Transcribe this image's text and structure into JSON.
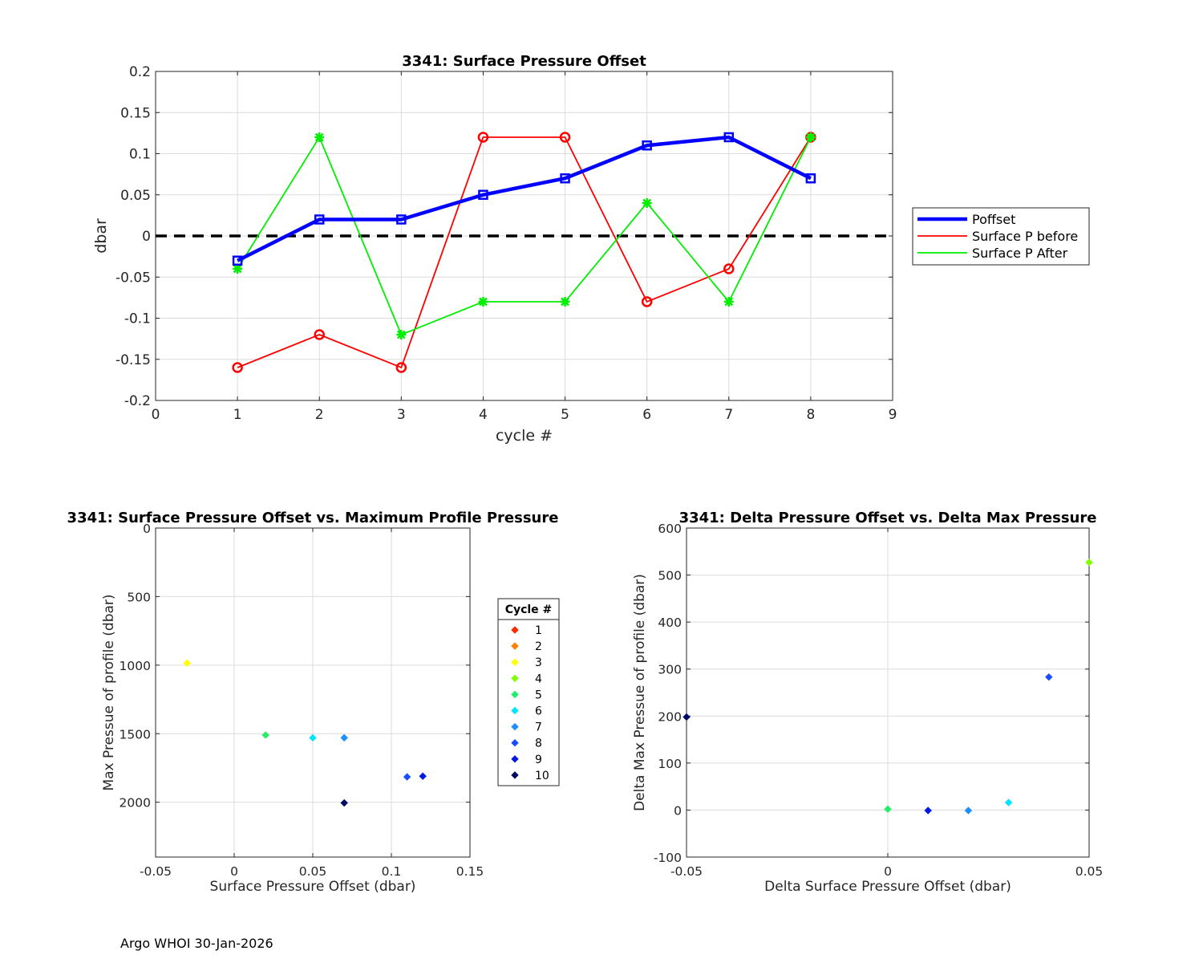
{
  "footer": "Argo WHOI 30-Jan-2026",
  "chart_data": [
    {
      "type": "line",
      "title": "3341: Surface Pressure Offset",
      "xlabel": "cycle #",
      "ylabel": "dbar",
      "xlim": [
        0,
        9
      ],
      "ylim": [
        -0.2,
        0.2
      ],
      "xticks": [
        "0",
        "1",
        "2",
        "3",
        "4",
        "5",
        "6",
        "7",
        "8",
        "9"
      ],
      "yticks": [
        "-0.2",
        "-0.15",
        "-0.1",
        "-0.05",
        "0",
        "0.05",
        "0.1",
        "0.15",
        "0.2"
      ],
      "grid": true,
      "legend_position": "outside-right",
      "reference_line": {
        "y": 0,
        "style": "dashed",
        "color": "#000000"
      },
      "series": [
        {
          "name": "Poffset",
          "color": "#0000ff",
          "marker": "square",
          "width": "thick",
          "x": [
            1,
            2,
            3,
            4,
            5,
            6,
            7,
            8
          ],
          "y": [
            -0.03,
            0.02,
            0.02,
            0.05,
            0.07,
            0.11,
            0.12,
            0.07
          ]
        },
        {
          "name": "Surface P before",
          "color": "#ff0000",
          "marker": "circle",
          "width": "thin",
          "x": [
            1,
            2,
            3,
            4,
            5,
            6,
            7,
            8
          ],
          "y": [
            -0.16,
            -0.12,
            -0.16,
            0.12,
            0.12,
            -0.08,
            -0.04,
            0.12
          ]
        },
        {
          "name": "Surface P After",
          "color": "#00ee00",
          "marker": "star",
          "width": "thin",
          "x": [
            1,
            2,
            3,
            4,
            5,
            6,
            7,
            8
          ],
          "y": [
            -0.04,
            0.12,
            -0.12,
            -0.08,
            -0.08,
            0.04,
            -0.08,
            0.12
          ]
        }
      ]
    },
    {
      "type": "scatter",
      "title": "3341: Surface Pressure Offset vs. Maximum Profile Pressure",
      "xlabel": "Surface Pressure Offset (dbar)",
      "ylabel": "Max Pressue of profile (dbar)",
      "xlim": [
        -0.05,
        0.15
      ],
      "ylim": [
        0,
        2400
      ],
      "y_reversed": true,
      "xticks": [
        "-0.05",
        "0",
        "0.05",
        "0.1",
        "0.15"
      ],
      "yticks": [
        "0",
        "500",
        "1000",
        "1500",
        "2000"
      ],
      "grid": true,
      "legend_title": "Cycle #",
      "legend_position": "outside-right",
      "legend": [
        {
          "label": "1",
          "color": "#ff2a00"
        },
        {
          "label": "2",
          "color": "#ff7f00"
        },
        {
          "label": "3",
          "color": "#ffff00"
        },
        {
          "label": "4",
          "color": "#7fff00"
        },
        {
          "label": "5",
          "color": "#22ee66"
        },
        {
          "label": "6",
          "color": "#00e5ff"
        },
        {
          "label": "7",
          "color": "#1e8fff"
        },
        {
          "label": "8",
          "color": "#1a4cff"
        },
        {
          "label": "9",
          "color": "#0019e6"
        },
        {
          "label": "10",
          "color": "#000a66"
        }
      ],
      "points": [
        {
          "x": -0.03,
          "y": 985,
          "color": "#ffff00"
        },
        {
          "x": 0.02,
          "y": 1510,
          "color": "#22ee66"
        },
        {
          "x": 0.05,
          "y": 1530,
          "color": "#00e5ff"
        },
        {
          "x": 0.07,
          "y": 1530,
          "color": "#1e8fff"
        },
        {
          "x": 0.11,
          "y": 1815,
          "color": "#1a4cff"
        },
        {
          "x": 0.12,
          "y": 1810,
          "color": "#0019e6"
        },
        {
          "x": 0.07,
          "y": 2005,
          "color": "#000a66"
        }
      ]
    },
    {
      "type": "scatter",
      "title": "3341: Delta Pressure Offset vs. Delta Max Pressure",
      "xlabel": "Delta Surface Pressure Offset (dbar)",
      "ylabel": "Delta Max Pressue of profile (dbar)",
      "xlim": [
        -0.05,
        0.05
      ],
      "ylim": [
        -100,
        600
      ],
      "xticks": [
        "-0.05",
        "0",
        "0.05"
      ],
      "yticks": [
        "-100",
        "0",
        "100",
        "200",
        "300",
        "400",
        "500",
        "600"
      ],
      "grid": true,
      "points": [
        {
          "x": 0.05,
          "y": 527,
          "color": "#7fff00"
        },
        {
          "x": 0.0,
          "y": 2,
          "color": "#22ee66"
        },
        {
          "x": 0.03,
          "y": 16,
          "color": "#00e5ff"
        },
        {
          "x": 0.02,
          "y": -1,
          "color": "#1e8fff"
        },
        {
          "x": 0.04,
          "y": 283,
          "color": "#1a4cff"
        },
        {
          "x": 0.01,
          "y": -1,
          "color": "#0019e6"
        },
        {
          "x": -0.05,
          "y": 198,
          "color": "#000a66"
        }
      ]
    }
  ]
}
